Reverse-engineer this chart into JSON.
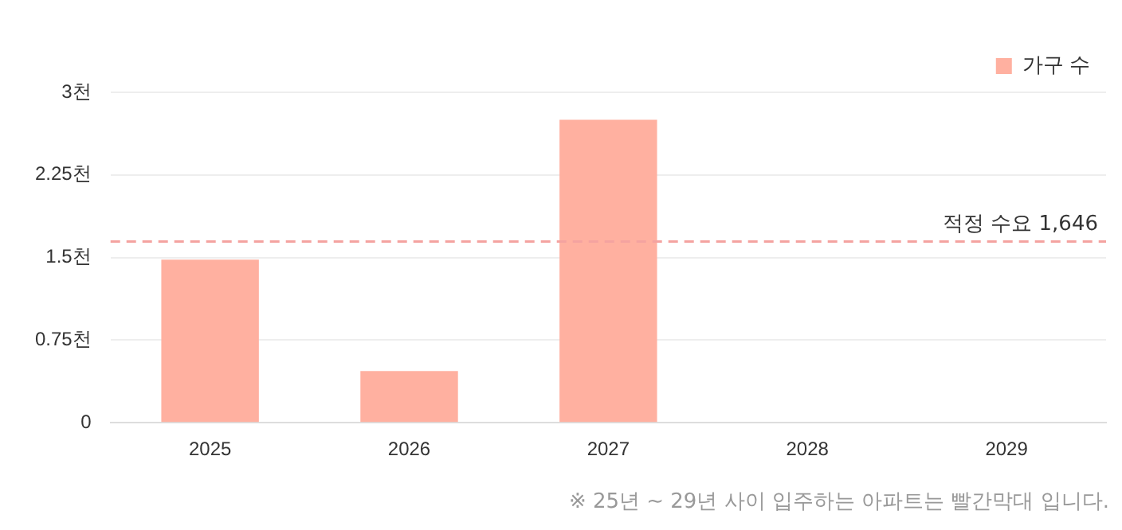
{
  "chart_data": {
    "type": "bar",
    "categories": [
      "2025",
      "2026",
      "2027",
      "2028",
      "2029"
    ],
    "series": [
      {
        "name": "가구 수",
        "color": "#ffb0a0",
        "values": [
          1.48,
          0.47,
          2.75,
          0,
          0
        ]
      }
    ],
    "ylim": [
      0,
      3
    ],
    "yticks": [
      0,
      {
        "value": 0.75,
        "label": "0.75천"
      },
      {
        "value": 1.5,
        "label": "1.5천"
      },
      {
        "value": 2.25,
        "label": "2.25천"
      },
      {
        "value": 3,
        "label": "3천"
      }
    ],
    "grid": "y",
    "legend": "top right",
    "ref_lines": [
      {
        "axis": "y",
        "value": 1.646,
        "label": "적정 수요 1,646",
        "color": "#f4a3a0",
        "line_style": "dashed"
      }
    ],
    "annotations": [
      "※ 25년 ~ 29년 사이 입주하는 아파트는 빨간막대 입니다."
    ]
  }
}
